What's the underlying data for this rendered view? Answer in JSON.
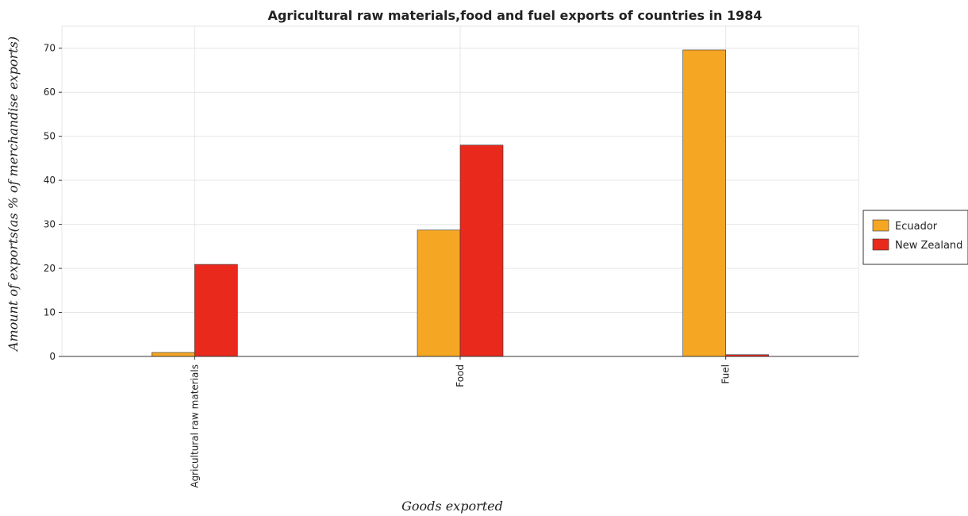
{
  "chart_data": {
    "type": "bar",
    "title": "Agricultural raw materials,food and fuel exports of countries in 1984",
    "xlabel": "Goods exported",
    "ylabel": "Amount of exports(as % of merchandise exports)",
    "categories": [
      "Agricultural raw materials",
      "Food",
      "Fuel"
    ],
    "series": [
      {
        "name": "Ecuador",
        "color": "#f5a623",
        "values": [
          0.9,
          28.7,
          69.6
        ]
      },
      {
        "name": "New Zealand",
        "color": "#e8291c",
        "values": [
          20.9,
          48.0,
          0.4
        ]
      }
    ],
    "ylim": [
      0,
      75
    ],
    "yticks": [
      0,
      10,
      20,
      30,
      40,
      50,
      60,
      70
    ],
    "grid": true,
    "legend_position": "right"
  }
}
